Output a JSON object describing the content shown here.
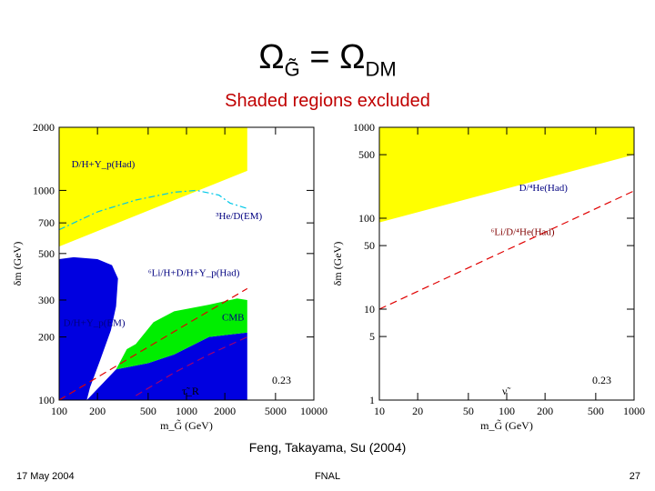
{
  "slide": {
    "title_main": "Ω",
    "title_sub": "G̃",
    "title_rest": " = Ω",
    "title_sub2": "DM",
    "subtitle": "Shaded regions excluded",
    "credit": "Feng, Takayama, Su (2004)",
    "footer_date": "17 May 2004",
    "footer_center": "FNAL",
    "footer_page": "27"
  },
  "chart_data": [
    {
      "type": "area",
      "xlabel": "m_G̃ (GeV)",
      "ylabel": "δm (GeV)",
      "xscale": "log",
      "yscale": "log",
      "xlim": [
        100,
        10000
      ],
      "ylim": [
        100,
        2000
      ],
      "xticks": [
        "100",
        "200",
        "500",
        "1000",
        "2000",
        "5000",
        "10000"
      ],
      "yticks": [
        "100",
        "200",
        "300",
        "500",
        "700",
        "1000",
        "2000"
      ],
      "corner_label": "τ̃_R",
      "corner_value": "0.23",
      "colors": {
        "yellow": "#ffff00",
        "blue": "#0000e0",
        "green": "#00ee00",
        "cyan": "#00c8e8",
        "red": "#e00000",
        "purple": "#a00070"
      },
      "regions": [
        {
          "name": "D/H+Y_p(Had)",
          "color": "yellow",
          "points": [
            [
              100,
              2000
            ],
            [
              3000,
              2000
            ],
            [
              3000,
              1240
            ],
            [
              100,
              540
            ]
          ]
        },
        {
          "name": "D/H+Y_p(EM)",
          "color": "blue",
          "points": [
            [
              100,
              100
            ],
            [
              100,
              470
            ],
            [
              130,
              480
            ],
            [
              200,
              470
            ],
            [
              260,
              440
            ],
            [
              290,
              380
            ],
            [
              280,
              280
            ],
            [
              255,
              215
            ],
            [
              210,
              155
            ],
            [
              175,
              115
            ],
            [
              165,
              100
            ]
          ]
        },
        {
          "name": "D/H+Y_p(EM) lower band",
          "color": "blue",
          "points": [
            [
              165,
              100
            ],
            [
              3000,
              100
            ],
            [
              3000,
              210
            ],
            [
              1500,
              200
            ],
            [
              800,
              165
            ],
            [
              500,
              150
            ],
            [
              280,
              140
            ]
          ]
        },
        {
          "name": "CMB",
          "color": "green",
          "points": [
            [
              400,
              185
            ],
            [
              550,
              235
            ],
            [
              800,
              265
            ],
            [
              1500,
              285
            ],
            [
              2500,
              305
            ],
            [
              3000,
              300
            ],
            [
              3000,
              210
            ],
            [
              1500,
              200
            ],
            [
              800,
              165
            ],
            [
              500,
              150
            ],
            [
              280,
              140
            ],
            [
              340,
              175
            ]
          ]
        }
      ],
      "curves": [
        {
          "name": "³He/D(EM)",
          "color": "cyan",
          "style": "dashdot",
          "points": [
            [
              100,
              650
            ],
            [
              200,
              790
            ],
            [
              400,
              900
            ],
            [
              800,
              980
            ],
            [
              1200,
              1000
            ],
            [
              1800,
              950
            ],
            [
              2200,
              870
            ],
            [
              3000,
              820
            ]
          ]
        },
        {
          "name": "⁶Li/H+D/H+Y_p(Had)",
          "color": "red",
          "style": "dashed",
          "points": [
            [
              100,
              100
            ],
            [
              1000,
              230
            ],
            [
              3000,
              340
            ]
          ]
        },
        {
          "name": "",
          "color": "purple",
          "style": "dashed",
          "points": [
            [
              400,
              105
            ],
            [
              800,
              135
            ],
            [
              1500,
              165
            ],
            [
              3000,
              200
            ]
          ]
        }
      ],
      "annotations": [
        {
          "text": "D/H+Y_p(Had)",
          "x": 125,
          "y": 1290,
          "color": "#000080"
        },
        {
          "text": "³He/D(EM)",
          "x": 1700,
          "y": 730,
          "color": "#000080"
        },
        {
          "text": "⁶Li/H+D/H+Y_p(Had)",
          "x": 500,
          "y": 390,
          "color": "#000080"
        },
        {
          "text": "D/H+Y_p(EM)",
          "x": 108,
          "y": 226,
          "color": "#000080"
        },
        {
          "text": "CMB",
          "x": 1900,
          "y": 240,
          "color": "#000080"
        }
      ]
    },
    {
      "type": "area",
      "xlabel": "m_G̃ (GeV)",
      "ylabel": "δm (GeV)",
      "xscale": "log",
      "yscale": "log",
      "xlim": [
        10,
        1000
      ],
      "ylim": [
        1,
        1000
      ],
      "xticks": [
        "10",
        "20",
        "50",
        "100",
        "200",
        "500",
        "1000"
      ],
      "yticks": [
        "1",
        "5",
        "10",
        "50",
        "100",
        "500",
        "1000"
      ],
      "corner_label": "ν̃",
      "corner_value": "0.23",
      "colors": {
        "yellow": "#ffff00",
        "red": "#e00000"
      },
      "regions": [
        {
          "name": "D/⁴He(Had)",
          "color": "yellow",
          "points": [
            [
              10,
              1000
            ],
            [
              1000,
              1000
            ],
            [
              1000,
              500
            ],
            [
              10,
              90
            ]
          ]
        }
      ],
      "curves": [
        {
          "name": "⁶Li/D/⁴He(Had)",
          "color": "red",
          "style": "dashed",
          "points": [
            [
              10,
              10
            ],
            [
              1000,
              200
            ]
          ]
        }
      ],
      "annotations": [
        {
          "text": "D/⁴He(Had)",
          "x": 125,
          "y": 200,
          "color": "#000080"
        },
        {
          "text": "⁶Li/D/⁴He(Had)",
          "x": 75,
          "y": 65,
          "color": "#800000"
        }
      ]
    }
  ]
}
